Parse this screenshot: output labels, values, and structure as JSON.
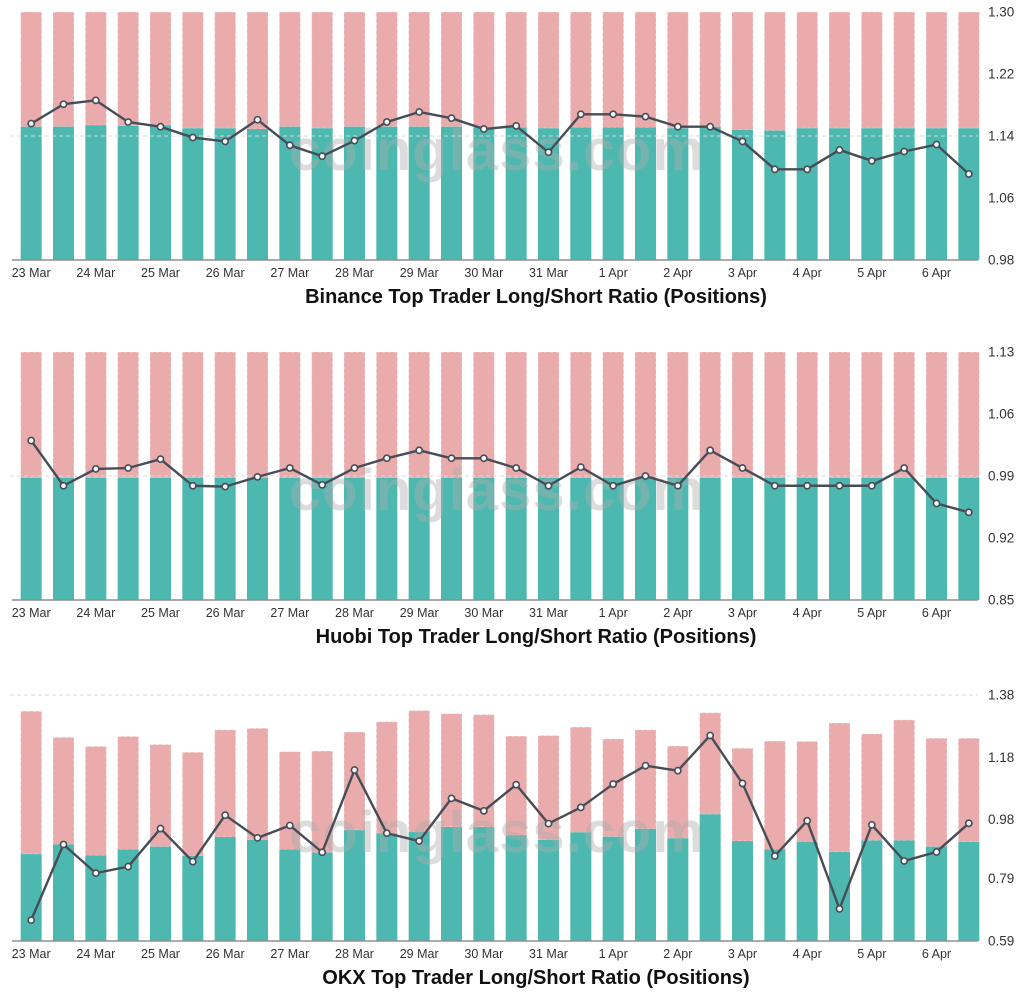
{
  "watermark": "coinglass.com",
  "colors": {
    "long_bar": "#4cb8b0",
    "short_bar": "#e9abab",
    "ratio_line": "#474d57",
    "marker_fill": "#f7f8f8",
    "grid_dash": "#d9d9d9",
    "axis_line": "#8f8f8f",
    "tick_text": "#333333",
    "title_text": "#111111",
    "watermark_text": "#ababab"
  },
  "x_labels": [
    "23 Mar",
    "24 Mar",
    "25 Mar",
    "26 Mar",
    "27 Mar",
    "28 Mar",
    "29 Mar",
    "30 Mar",
    "31 Mar",
    "1 Apr",
    "2 Apr",
    "3 Apr",
    "4 Apr",
    "5 Apr",
    "6 Apr"
  ],
  "chart_data": [
    {
      "type": "bar",
      "subtype": "stacked-long-short-bars-with-ratio-line",
      "exchange": "Binance",
      "title": "Binance Top Trader Long/Short Ratio (Positions)",
      "bars_per_date": 2,
      "categories": [
        "23 Mar",
        "24 Mar",
        "25 Mar",
        "26 Mar",
        "27 Mar",
        "28 Mar",
        "29 Mar",
        "30 Mar",
        "31 Mar",
        "1 Apr",
        "2 Apr",
        "3 Apr",
        "4 Apr",
        "5 Apr",
        "6 Apr"
      ],
      "y_axis": {
        "position": "right",
        "min": 0.98,
        "max": 1.3,
        "ticks": [
          1.3,
          1.22,
          1.14,
          1.06,
          0.98
        ]
      },
      "dashed_gridlines": [
        1.14
      ],
      "legend": "none",
      "series": [
        {
          "name": "Longs (teal bar, top edge on right axis)",
          "values": [
            1.152,
            1.152,
            1.154,
            1.153,
            1.154,
            1.15,
            1.15,
            1.149,
            1.152,
            1.15,
            1.152,
            1.152,
            1.152,
            1.152,
            1.151,
            1.151,
            1.15,
            1.151,
            1.151,
            1.151,
            1.15,
            1.152,
            1.148,
            1.147,
            1.15,
            1.15,
            1.15,
            1.15,
            1.15,
            1.15
          ]
        },
        {
          "name": "Shorts (pink bar, total top)",
          "values": [
            1.3,
            1.3,
            1.3,
            1.3,
            1.3,
            1.3,
            1.3,
            1.3,
            1.3,
            1.3,
            1.3,
            1.3,
            1.3,
            1.3,
            1.3,
            1.3,
            1.3,
            1.3,
            1.3,
            1.3,
            1.3,
            1.3,
            1.3,
            1.3,
            1.3,
            1.3,
            1.3,
            1.3,
            1.3,
            1.3
          ]
        },
        {
          "name": "Long/Short Ratio (line)",
          "values": [
            1.156,
            1.181,
            1.186,
            1.158,
            1.152,
            1.138,
            1.133,
            1.161,
            1.128,
            1.114,
            1.134,
            1.158,
            1.171,
            1.163,
            1.149,
            1.153,
            1.119,
            1.168,
            1.168,
            1.165,
            1.152,
            1.152,
            1.133,
            1.097,
            1.097,
            1.122,
            1.108,
            1.12,
            1.129,
            1.091
          ]
        }
      ]
    },
    {
      "type": "bar",
      "subtype": "stacked-long-short-bars-with-ratio-line",
      "exchange": "Huobi",
      "title": "Huobi Top Trader Long/Short Ratio (Positions)",
      "bars_per_date": 2,
      "categories": [
        "23 Mar",
        "24 Mar",
        "25 Mar",
        "26 Mar",
        "27 Mar",
        "28 Mar",
        "29 Mar",
        "30 Mar",
        "31 Mar",
        "1 Apr",
        "2 Apr",
        "3 Apr",
        "4 Apr",
        "5 Apr",
        "6 Apr"
      ],
      "y_axis": {
        "position": "right",
        "min": 0.85,
        "max": 1.13,
        "ticks": [
          1.13,
          1.06,
          0.99,
          0.92,
          0.85
        ]
      },
      "dashed_gridlines": [
        0.99
      ],
      "legend": "none",
      "series": [
        {
          "name": "Longs (teal bar, top edge on right axis)",
          "values": [
            0.988,
            0.988,
            0.988,
            0.988,
            0.988,
            0.988,
            0.988,
            0.988,
            0.988,
            0.988,
            0.988,
            0.988,
            0.988,
            0.988,
            0.988,
            0.988,
            0.988,
            0.988,
            0.988,
            0.988,
            0.988,
            0.988,
            0.988,
            0.988,
            0.988,
            0.988,
            0.988,
            0.988,
            0.988,
            0.988
          ]
        },
        {
          "name": "Shorts (pink bar, total top)",
          "values": [
            1.13,
            1.13,
            1.13,
            1.13,
            1.13,
            1.13,
            1.13,
            1.13,
            1.13,
            1.13,
            1.13,
            1.13,
            1.13,
            1.13,
            1.13,
            1.13,
            1.13,
            1.13,
            1.13,
            1.13,
            1.13,
            1.13,
            1.13,
            1.13,
            1.13,
            1.13,
            1.13,
            1.13,
            1.13,
            1.13
          ]
        },
        {
          "name": "Long/Short Ratio (line)",
          "values": [
            1.03,
            0.979,
            0.998,
            0.999,
            1.009,
            0.979,
            0.978,
            0.989,
            0.999,
            0.98,
            0.999,
            1.01,
            1.019,
            1.01,
            1.01,
            0.999,
            0.979,
            1.0,
            0.979,
            0.99,
            0.979,
            1.019,
            0.999,
            0.979,
            0.979,
            0.979,
            0.979,
            0.999,
            0.959,
            0.949
          ]
        }
      ]
    },
    {
      "type": "bar",
      "subtype": "stacked-long-short-bars-with-ratio-line",
      "exchange": "OKX",
      "title": "OKX Top Trader Long/Short Ratio (Positions)",
      "bars_per_date": 2,
      "categories": [
        "23 Mar",
        "24 Mar",
        "25 Mar",
        "26 Mar",
        "27 Mar",
        "28 Mar",
        "29 Mar",
        "30 Mar",
        "31 Mar",
        "1 Apr",
        "2 Apr",
        "3 Apr",
        "4 Apr",
        "5 Apr",
        "6 Apr"
      ],
      "y_axis": {
        "position": "right",
        "min": 0.59,
        "max": 1.38,
        "ticks": [
          1.38,
          1.18,
          0.98,
          0.79,
          0.59
        ]
      },
      "dashed_gridlines": [
        1.38
      ],
      "legend": "none",
      "series": [
        {
          "name": "Longs (teal bar, top edge on right axis)",
          "values": [
            0.869,
            0.9,
            0.865,
            0.884,
            0.893,
            0.863,
            0.924,
            0.915,
            0.884,
            0.874,
            0.946,
            0.936,
            0.941,
            0.956,
            0.956,
            0.93,
            0.915,
            0.939,
            0.925,
            0.95,
            0.92,
            0.997,
            0.911,
            0.884,
            0.909,
            0.876,
            0.913,
            0.913,
            0.893,
            0.908
          ]
        },
        {
          "name": "Shorts (pink bar, total top)",
          "values": [
            1.328,
            1.244,
            1.215,
            1.247,
            1.221,
            1.196,
            1.268,
            1.273,
            1.198,
            1.2,
            1.261,
            1.294,
            1.33,
            1.32,
            1.317,
            1.248,
            1.25,
            1.277,
            1.239,
            1.268,
            1.216,
            1.323,
            1.209,
            1.232,
            1.231,
            1.29,
            1.255,
            1.3,
            1.241,
            1.241
          ]
        },
        {
          "name": "Long/Short Ratio (line)",
          "values": [
            0.657,
            0.9,
            0.808,
            0.829,
            0.951,
            0.845,
            0.994,
            0.921,
            0.961,
            0.875,
            1.139,
            0.936,
            0.911,
            1.048,
            1.008,
            1.092,
            0.967,
            1.019,
            1.094,
            1.153,
            1.137,
            1.25,
            1.096,
            0.863,
            0.976,
            0.693,
            0.963,
            0.847,
            0.876,
            0.968
          ]
        }
      ]
    }
  ]
}
